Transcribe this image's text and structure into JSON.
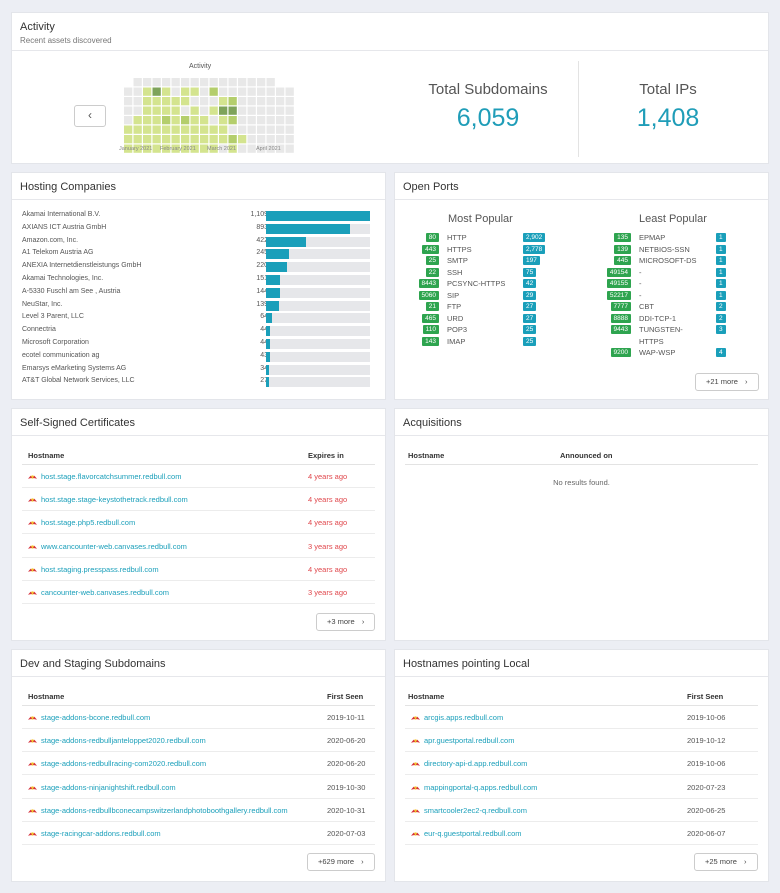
{
  "activity": {
    "title": "Activity",
    "subtitle": "Recent assets discovered",
    "heatmap_title": "Activity",
    "months": [
      "January 2021",
      "February 2021",
      "March 2021",
      "April 2021"
    ],
    "prev_icon": "chevron-left-icon",
    "total_subdomains_label": "Total Subdomains",
    "total_subdomains_value": "6,059",
    "total_ips_label": "Total IPs",
    "total_ips_value": "1,408",
    "colors": {
      "empty": "#e8e8e8",
      "low": "#d4e48f",
      "mid": "#b4ce6c",
      "high": "#7ea35a"
    }
  },
  "hosting": {
    "title": "Hosting Companies",
    "max": 1109,
    "rows": [
      {
        "name": "Akamai International B.V.",
        "count": "1,109",
        "value": 1109
      },
      {
        "name": "AXIANS ICT Austria GmbH",
        "count": "893",
        "value": 893
      },
      {
        "name": "Amazon.com, Inc.",
        "count": "422",
        "value": 422
      },
      {
        "name": "A1 Telekom Austria AG",
        "count": "245",
        "value": 245
      },
      {
        "name": "ANEXIA Internetdienstleistungs GmbH",
        "count": "220",
        "value": 220
      },
      {
        "name": "Akamai Technologies, Inc.",
        "count": "151",
        "value": 151
      },
      {
        "name": "A-5330 Fuschl am See , Austria",
        "count": "144",
        "value": 144
      },
      {
        "name": "NeuStar, Inc.",
        "count": "139",
        "value": 139
      },
      {
        "name": "Level 3 Parent, LLC",
        "count": "64",
        "value": 64
      },
      {
        "name": "Connectria",
        "count": "44",
        "value": 44
      },
      {
        "name": "Microsoft Corporation",
        "count": "44",
        "value": 44
      },
      {
        "name": "ecotel communication ag",
        "count": "43",
        "value": 43
      },
      {
        "name": "Emarsys eMarketing Systems AG",
        "count": "34",
        "value": 34
      },
      {
        "name": "AT&T Global Network Services, LLC",
        "count": "27",
        "value": 27
      }
    ]
  },
  "ports": {
    "title": "Open Ports",
    "most_popular_label": "Most Popular",
    "least_popular_label": "Least Popular",
    "most": [
      {
        "port": "80",
        "name": "HTTP",
        "count": "2,902"
      },
      {
        "port": "443",
        "name": "HTTPS",
        "count": "2,778"
      },
      {
        "port": "25",
        "name": "SMTP",
        "count": "197"
      },
      {
        "port": "22",
        "name": "SSH",
        "count": "75"
      },
      {
        "port": "8443",
        "name": "PCSYNC-HTTPS",
        "count": "42"
      },
      {
        "port": "5060",
        "name": "SIP",
        "count": "29"
      },
      {
        "port": "21",
        "name": "FTP",
        "count": "27"
      },
      {
        "port": "465",
        "name": "URD",
        "count": "27"
      },
      {
        "port": "110",
        "name": "POP3",
        "count": "25"
      },
      {
        "port": "143",
        "name": "IMAP",
        "count": "25"
      }
    ],
    "least": [
      {
        "port": "135",
        "name": "EPMAP",
        "count": "1"
      },
      {
        "port": "139",
        "name": "NETBIOS-SSN",
        "count": "1"
      },
      {
        "port": "445",
        "name": "MICROSOFT-DS",
        "count": "1"
      },
      {
        "port": "49154",
        "name": "-",
        "count": "1"
      },
      {
        "port": "49155",
        "name": "-",
        "count": "1"
      },
      {
        "port": "52217",
        "name": "-",
        "count": "1"
      },
      {
        "port": "7777",
        "name": "CBT",
        "count": "2"
      },
      {
        "port": "8888",
        "name": "DDI-TCP-1",
        "count": "2"
      },
      {
        "port": "9443",
        "name": "TUNGSTEN-",
        "name2": "HTTPS",
        "count": "3"
      },
      {
        "port": "9200",
        "name": "WAP-WSP",
        "count": "4"
      }
    ],
    "more_label": "+21 more"
  },
  "selfsigned": {
    "title": "Self-Signed Certificates",
    "col_host": "Hostname",
    "col_expires": "Expires in",
    "rows": [
      {
        "host": "host.stage.flavorcatchsummer.redbull.com",
        "expires": "4 years ago"
      },
      {
        "host": "host.stage.stage-keystothetrack.redbull.com",
        "expires": "4 years ago"
      },
      {
        "host": "host.stage.php5.redbull.com",
        "expires": "4 years ago"
      },
      {
        "host": "www.cancounter-web.canvases.redbull.com",
        "expires": "3 years ago"
      },
      {
        "host": "host.staging.presspass.redbull.com",
        "expires": "4 years ago"
      },
      {
        "host": "cancounter-web.canvases.redbull.com",
        "expires": "3 years ago"
      }
    ],
    "more_label": "+3 more"
  },
  "acquisitions": {
    "title": "Acquisitions",
    "col_host": "Hostname",
    "col_announced": "Announced on",
    "empty": "No results found."
  },
  "devstage": {
    "title": "Dev and Staging Subdomains",
    "col_host": "Hostname",
    "col_first": "First Seen",
    "rows": [
      {
        "host": "stage-addons-bcone.redbull.com",
        "date": "2019-10-11"
      },
      {
        "host": "stage-addons-redbulljanteloppet2020.redbull.com",
        "date": "2020-06-20"
      },
      {
        "host": "stage-addons-redbullracing-com2020.redbull.com",
        "date": "2020-06-20"
      },
      {
        "host": "stage-addons-ninjanightshift.redbull.com",
        "date": "2019-10-30"
      },
      {
        "host": "stage-addons-redbullbconecampswitzerlandphotoboothgallery.redbull.com",
        "date": "2020-10-31"
      },
      {
        "host": "stage-racingcar-addons.redbull.com",
        "date": "2020-07-03"
      }
    ],
    "more_label": "+629 more"
  },
  "local": {
    "title": "Hostnames pointing Local",
    "col_host": "Hostname",
    "col_first": "First Seen",
    "rows": [
      {
        "host": "arcgis.apps.redbull.com",
        "date": "2019-10-06"
      },
      {
        "host": "apr.guestportal.redbull.com",
        "date": "2019-10-12"
      },
      {
        "host": "directory-api-d.app.redbull.com",
        "date": "2019-10-06"
      },
      {
        "host": "mappingportal-q.apps.redbull.com",
        "date": "2020-07-23"
      },
      {
        "host": "smartcooler2ec2-q.redbull.com",
        "date": "2020-06-25"
      },
      {
        "host": "eur-q.guestportal.redbull.com",
        "date": "2020-06-07"
      }
    ],
    "more_label": "+25 more"
  }
}
